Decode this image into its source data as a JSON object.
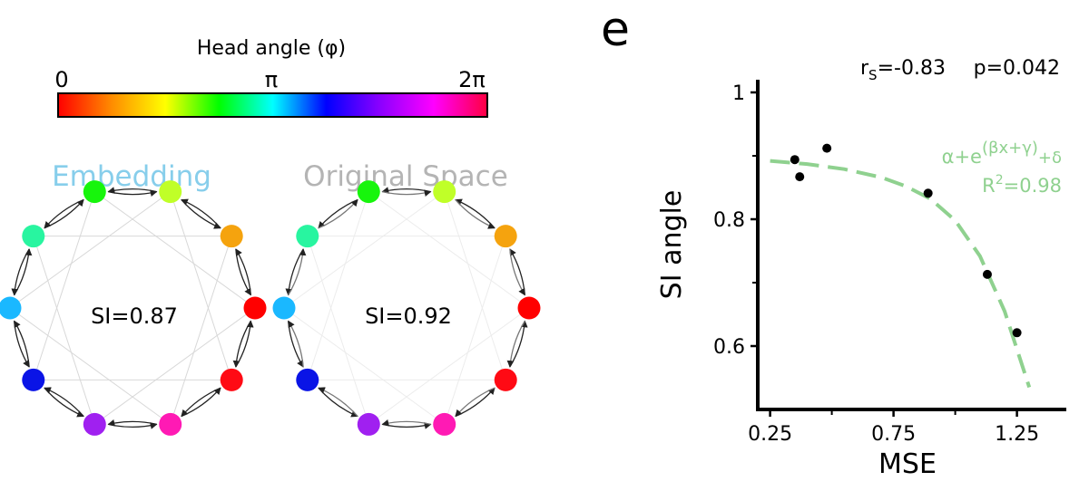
{
  "colorbar": {
    "title": "Head angle (φ)",
    "ticks": [
      "0",
      "π",
      "2π"
    ],
    "stops": [
      "#ff0000",
      "#ff8c00",
      "#ffff00",
      "#00ff00",
      "#00ffff",
      "#0000ff",
      "#8b00ff",
      "#ff00ff",
      "#ff0040"
    ]
  },
  "graphs": [
    {
      "title": "Embedding",
      "title_color": "#87ceeb",
      "si_label": "SI=0.87",
      "nodes": [
        {
          "color": "#ff0000"
        },
        {
          "color": "#f5a30e"
        },
        {
          "color": "#c0ff28"
        },
        {
          "color": "#17f50c"
        },
        {
          "color": "#28f5a0"
        },
        {
          "color": "#1ab8ff"
        },
        {
          "color": "#0a14e6"
        },
        {
          "color": "#a020f0"
        },
        {
          "color": "#ff1ab4"
        },
        {
          "color": "#ff0a14"
        }
      ]
    },
    {
      "title": "Original Space",
      "title_color": "#b4b4b4",
      "si_label": "SI=0.92",
      "nodes": [
        {
          "color": "#ff0000"
        },
        {
          "color": "#f5a30e"
        },
        {
          "color": "#c0ff28"
        },
        {
          "color": "#17f50c"
        },
        {
          "color": "#28f5a0"
        },
        {
          "color": "#1ab8ff"
        },
        {
          "color": "#0a14e6"
        },
        {
          "color": "#a020f0"
        },
        {
          "color": "#ff1ab4"
        },
        {
          "color": "#ff0a14"
        }
      ]
    }
  ],
  "panel_label": "e",
  "stats": {
    "rs": "r",
    "rs_sub": "S",
    "rs_value": "=-0.83",
    "p": "p=0.042"
  },
  "fit_label": {
    "formula_base": "α+e",
    "formula_exp": "(βx+γ)",
    "formula_tail": "+δ",
    "r2_base": "R",
    "r2_sup": "2",
    "r2_value": "=0.98",
    "color": "#8fd18f"
  },
  "chart_data": {
    "type": "scatter",
    "title": "",
    "xlabel": "MSE",
    "ylabel": "SI angle",
    "xlim": [
      0.2,
      1.45
    ],
    "ylim": [
      0.5,
      1.02
    ],
    "xticks": [
      0.25,
      0.75,
      1.25
    ],
    "xtick_labels": [
      "0.25",
      "0.75",
      "1.25"
    ],
    "yticks": [
      0.6,
      0.8,
      1
    ],
    "ytick_labels": [
      "0.6",
      "0.8",
      "1"
    ],
    "points": [
      {
        "x": 0.35,
        "y": 0.894
      },
      {
        "x": 0.37,
        "y": 0.867
      },
      {
        "x": 0.48,
        "y": 0.912
      },
      {
        "x": 0.89,
        "y": 0.841
      },
      {
        "x": 1.13,
        "y": 0.713
      },
      {
        "x": 1.25,
        "y": 0.621
      }
    ],
    "fit_curve": {
      "x": [
        0.25,
        0.4,
        0.55,
        0.7,
        0.8,
        0.9,
        1.0,
        1.1,
        1.2,
        1.3
      ],
      "y": [
        0.892,
        0.887,
        0.879,
        0.866,
        0.852,
        0.832,
        0.798,
        0.742,
        0.655,
        0.535
      ]
    },
    "grid": false
  }
}
